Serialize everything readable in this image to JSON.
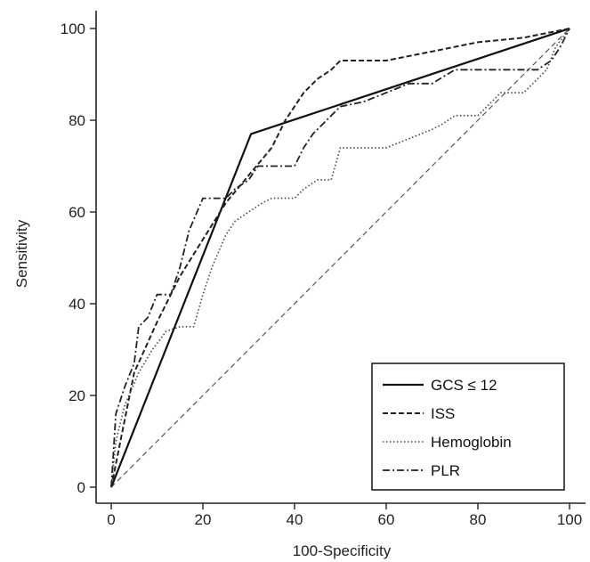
{
  "chart_data": {
    "type": "line",
    "title": "",
    "xlabel": "100-Specificity",
    "ylabel": "Sensitivity",
    "xlim": [
      0,
      100
    ],
    "ylim": [
      0,
      100
    ],
    "xticks": [
      0,
      20,
      40,
      60,
      80,
      100
    ],
    "yticks": [
      0,
      20,
      40,
      60,
      80,
      100
    ],
    "grid": false,
    "legend_position": "bottom-right",
    "series": [
      {
        "name": "GCS ≤ 12",
        "style": "solid",
        "x": [
          0,
          30.5,
          100
        ],
        "y": [
          0,
          77,
          100
        ]
      },
      {
        "name": "ISS",
        "style": "dashed",
        "x": [
          0,
          5,
          10,
          15,
          20,
          25,
          30,
          35,
          38,
          42,
          45,
          48,
          50,
          55,
          60,
          65,
          70,
          80,
          90,
          100
        ],
        "y": [
          0,
          25,
          36,
          46,
          54,
          62,
          68,
          74,
          80,
          86,
          89,
          91,
          93,
          93,
          93,
          94,
          95,
          97,
          98,
          100
        ]
      },
      {
        "name": "Hemoglobin",
        "style": "dotted",
        "x": [
          0,
          1,
          3,
          6,
          9,
          12,
          15,
          18,
          20,
          22,
          25,
          27,
          30,
          33,
          35,
          40,
          42,
          45,
          48,
          50,
          55,
          60,
          65,
          70,
          72,
          75,
          80,
          85,
          90,
          92,
          95,
          97,
          100
        ],
        "y": [
          0,
          10,
          18,
          25,
          30,
          34,
          35,
          35,
          42,
          48,
          55,
          58,
          60,
          62,
          63,
          63,
          65,
          67,
          67,
          74,
          74,
          74,
          76,
          78,
          79,
          81,
          81,
          86,
          86,
          88,
          91,
          96,
          100
        ]
      },
      {
        "name": "PLR",
        "style": "dash-dot",
        "x": [
          0,
          1,
          3,
          5,
          6,
          8,
          10,
          13,
          15,
          17,
          20,
          23,
          25,
          27,
          30,
          32,
          35,
          40,
          42,
          44,
          46,
          50,
          55,
          60,
          65,
          70,
          75,
          80,
          85,
          90,
          93,
          96,
          98,
          100
        ],
        "y": [
          0,
          16,
          22,
          27,
          35,
          37,
          42,
          42,
          48,
          56,
          63,
          63,
          63,
          65,
          67,
          70,
          70,
          70,
          74,
          77,
          79,
          83,
          84,
          86,
          88,
          88,
          91,
          91,
          91,
          91,
          91,
          93,
          96,
          100
        ]
      }
    ]
  }
}
